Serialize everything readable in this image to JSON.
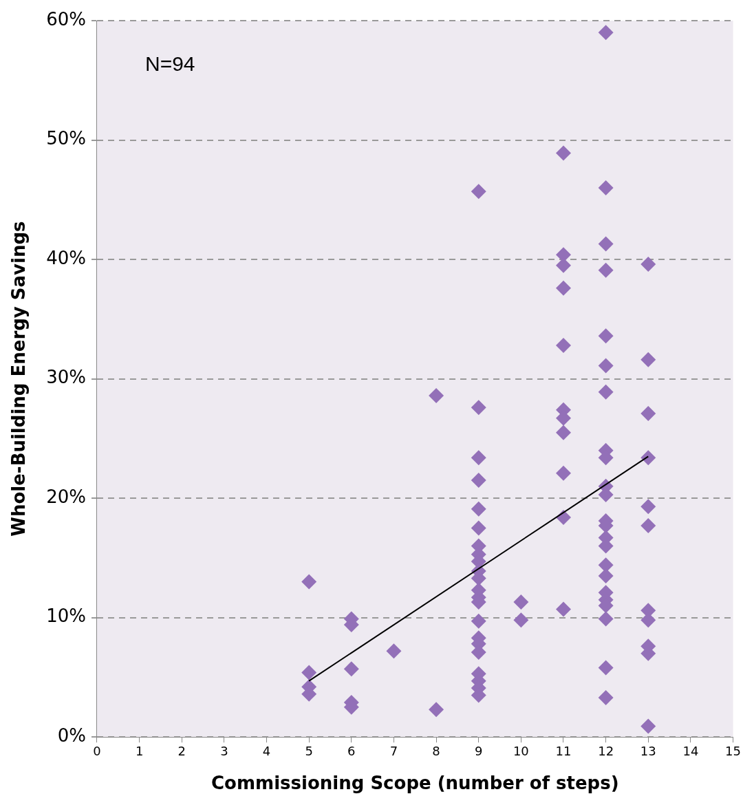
{
  "chart_data": {
    "type": "scatter",
    "xlabel": "Commissioning Scope (number of steps)",
    "ylabel": "Whole-Building Energy Savings",
    "annotations": [
      "N=94"
    ],
    "xlim": [
      0,
      15
    ],
    "xticks": [
      0,
      1,
      2,
      3,
      4,
      5,
      6,
      7,
      8,
      9,
      10,
      11,
      12,
      13,
      14,
      15
    ],
    "ylim": [
      0,
      60
    ],
    "yticks": [
      {
        "value": 0,
        "label": "0%"
      },
      {
        "value": 10,
        "label": "10%"
      },
      {
        "value": 20,
        "label": "20%"
      },
      {
        "value": 30,
        "label": "30%"
      },
      {
        "value": 40,
        "label": "40%"
      },
      {
        "value": 50,
        "label": "50%"
      },
      {
        "value": 60,
        "label": "60%"
      }
    ],
    "grid": "y",
    "legend": false,
    "marker": "diamond",
    "series": [
      {
        "type": "scatter",
        "color": "#9370b8",
        "x": [
          5,
          5,
          5,
          5,
          6,
          6,
          6,
          6,
          6,
          7,
          8,
          8,
          9,
          9,
          9,
          9,
          9,
          9,
          9,
          9,
          9,
          9,
          9,
          9,
          9,
          9,
          9,
          9,
          9,
          9,
          9,
          9,
          9,
          9,
          10,
          10,
          11,
          11,
          11,
          11,
          11,
          11,
          11,
          11,
          11,
          11,
          11,
          12,
          12,
          12,
          12,
          12,
          12,
          12,
          12,
          12,
          12,
          12,
          12,
          12,
          12,
          12,
          12,
          12,
          12,
          12,
          12,
          12,
          12,
          12,
          13,
          13,
          13,
          13,
          13,
          13,
          13,
          13,
          13,
          13,
          13
        ],
        "values": [
          13.0,
          5.4,
          4.2,
          3.6,
          9.9,
          9.4,
          5.7,
          2.9,
          2.5,
          7.2,
          28.6,
          2.3,
          45.7,
          27.6,
          23.4,
          21.5,
          19.1,
          17.5,
          16.0,
          15.3,
          14.7,
          13.9,
          13.3,
          12.3,
          11.7,
          11.3,
          9.7,
          8.3,
          7.8,
          7.1,
          5.3,
          4.7,
          4.1,
          3.5,
          11.3,
          9.8,
          48.9,
          40.4,
          39.5,
          37.6,
          32.8,
          27.4,
          26.7,
          25.5,
          22.1,
          18.4,
          10.7,
          59.0,
          46.0,
          41.3,
          39.1,
          33.6,
          31.1,
          28.9,
          24.0,
          23.4,
          21.0,
          20.3,
          18.1,
          17.7,
          16.7,
          16.0,
          14.4,
          13.5,
          12.1,
          11.5,
          11.0,
          9.9,
          5.8,
          3.3,
          39.6,
          31.6,
          27.1,
          23.4,
          19.3,
          17.7,
          10.6,
          9.8,
          7.6,
          7.0,
          0.9
        ]
      },
      {
        "type": "line",
        "color": "#000000",
        "marker": "none",
        "line_style": "solid",
        "x": [
          5,
          13
        ],
        "values": [
          4.7,
          23.5
        ]
      }
    ]
  }
}
